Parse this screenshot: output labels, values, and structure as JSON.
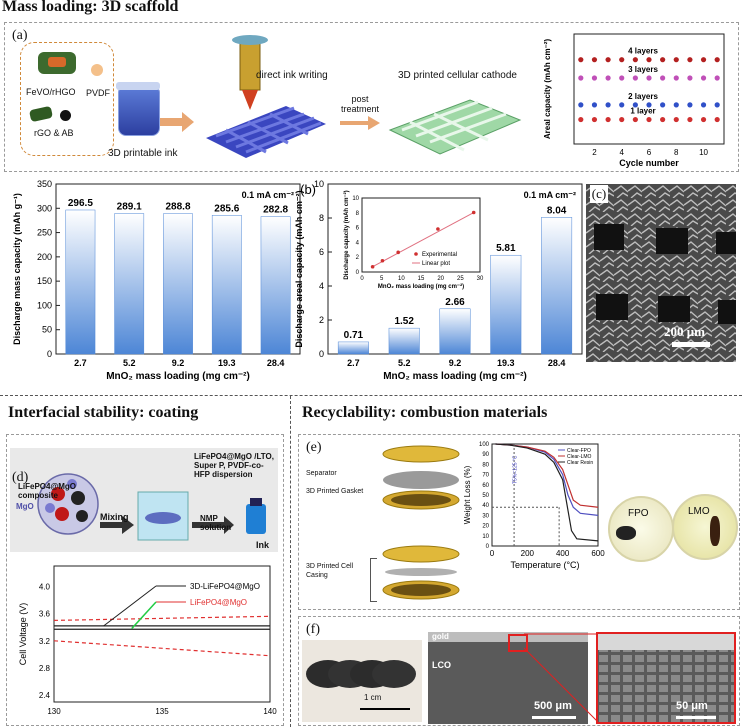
{
  "sections": {
    "mass": "Mass loading: 3D scaffold",
    "interfacial": "Interfacial stability: coating",
    "recycle": "Recyclability: combustion materials"
  },
  "panel_a": {
    "tag": "(a)",
    "ingredients": [
      "FeVO/rHGO",
      "PVDF",
      "rGO & AB"
    ],
    "ink_label": "3D printable ink",
    "step_label": "direct ink writing",
    "post_label": "post treatment",
    "cathode_label": "3D printed cellular cathode"
  },
  "panel_c": {
    "tag": "(c)",
    "scale": "200 μm"
  },
  "panel_d": {
    "tag": "(d)",
    "composite": "LiFePO4@MgO composite",
    "mgo": "MgO",
    "mixing": "Mixing",
    "dispersion": "LiFePO4@MgO /LTO, Super P, PVDF-co-HFP dispersion",
    "nmp": "NMP solution",
    "ink": "Ink"
  },
  "panel_e": {
    "tag": "(e)",
    "separator": "Separator",
    "gasket": "3D Printed Gasket",
    "casing": "3D Printed Cell Casing",
    "dish1": "FPO",
    "dish2": "LMO"
  },
  "panel_f": {
    "tag": "(f)",
    "scale1": "1 cm",
    "gold": "gold",
    "lco": "LCO",
    "scale2": "500 μm",
    "scale3": "50 μm"
  },
  "chart_data": [
    {
      "id": "areal-vs-cycle",
      "type": "scatter",
      "xlabel": "Cycle number",
      "ylabel": "Areal capacity (mAh cm⁻²)",
      "xticks": [
        "2",
        "4",
        "6",
        "8",
        "10"
      ],
      "xlim": [
        0.5,
        11.5
      ],
      "ylim": [
        0,
        9
      ],
      "x": [
        1,
        2,
        3,
        4,
        5,
        6,
        7,
        8,
        9,
        10,
        11
      ],
      "series": [
        {
          "name": "4 layers",
          "color": "#b32020",
          "value": 6.9
        },
        {
          "name": "3 layers",
          "color": "#c050b8",
          "value": 5.4
        },
        {
          "name": "2 layers",
          "color": "#3050c8",
          "value": 3.2
        },
        {
          "name": "1 layer",
          "color": "#d03030",
          "value": 2.0
        }
      ]
    },
    {
      "id": "mass-capacity",
      "type": "bar",
      "categories": [
        "2.7",
        "5.2",
        "9.2",
        "19.3",
        "28.4"
      ],
      "values": [
        296.5,
        289.1,
        288.8,
        285.6,
        282.8
      ],
      "value_labels": [
        "296.5",
        "289.1",
        "288.8",
        "285.6",
        "282.8"
      ],
      "ylim": [
        0,
        350
      ],
      "yticks": [
        "0",
        "50",
        "100",
        "150",
        "200",
        "250",
        "300",
        "350"
      ],
      "xlabel": "MnO₂ mass loading (mg cm⁻²)",
      "ylabel": "Discharge mass capacity (mAh g⁻¹)",
      "note": "0.1 mA cm⁻²"
    },
    {
      "id": "areal-capacity",
      "tag": "(b)",
      "type": "bar",
      "categories": [
        "2.7",
        "5.2",
        "9.2",
        "19.3",
        "28.4"
      ],
      "values": [
        0.71,
        1.52,
        2.66,
        5.81,
        8.04
      ],
      "value_labels": [
        "0.71",
        "1.52",
        "2.66",
        "5.81",
        "8.04"
      ],
      "ylim": [
        0,
        10
      ],
      "yticks": [
        "0",
        "2",
        "4",
        "6",
        "8",
        "10"
      ],
      "xlabel": "MnO₂ mass loading (mg cm⁻²)",
      "ylabel": "Discharge areal capacity (mAh cm⁻²)",
      "note": "0.1 mA cm⁻²",
      "inset": {
        "type": "line",
        "x": [
          2.7,
          5.2,
          9.2,
          19.3,
          28.4
        ],
        "y": [
          0.71,
          1.52,
          2.66,
          5.81,
          8.04
        ],
        "xlim": [
          0,
          30
        ],
        "ylim": [
          0,
          10
        ],
        "xticks": [
          "0",
          "5",
          "10",
          "15",
          "20",
          "25",
          "30"
        ],
        "yticks": [
          "0",
          "2",
          "4",
          "6",
          "8",
          "10"
        ],
        "xlabel": "MnO₂ mass loading (mg cm⁻²)",
        "ylabel": "Discharge capacity (mAh cm⁻²)",
        "legend": [
          "Experimental",
          "Linear plot"
        ]
      }
    },
    {
      "id": "tga",
      "type": "line",
      "xlabel": "Temperature (°C)",
      "ylabel": "Weight Loss (%)",
      "xlim": [
        0,
        600
      ],
      "ylim": [
        0,
        100
      ],
      "xticks": [
        "0",
        "200",
        "400",
        "600"
      ],
      "yticks": [
        "0",
        "10",
        "20",
        "30",
        "40",
        "50",
        "60",
        "70",
        "80",
        "90",
        "100"
      ],
      "annotation": "T5%=125 °C",
      "series": [
        {
          "name": "Clear-FPO",
          "color": "#5050c0",
          "x": [
            20,
            100,
            200,
            300,
            350,
            400,
            430,
            460,
            500,
            600
          ],
          "y": [
            100,
            99,
            97,
            92,
            85,
            70,
            50,
            38,
            32,
            30
          ]
        },
        {
          "name": "Clear-LMO",
          "color": "#c03030",
          "x": [
            20,
            100,
            200,
            300,
            350,
            400,
            430,
            460,
            500,
            600
          ],
          "y": [
            100,
            99,
            97,
            93,
            87,
            75,
            60,
            45,
            40,
            38
          ]
        },
        {
          "name": "Clear Resin",
          "color": "#202020",
          "x": [
            20,
            100,
            200,
            300,
            350,
            400,
            430,
            450,
            480,
            600
          ],
          "y": [
            100,
            99,
            96,
            90,
            82,
            65,
            35,
            15,
            7,
            5
          ]
        }
      ]
    },
    {
      "id": "voltage",
      "type": "line",
      "xlabel": "",
      "ylabel": "Cell Voltage (V)",
      "xlim": [
        130,
        140
      ],
      "ylim": [
        2.3,
        4.3
      ],
      "xticks": [
        "130",
        "135",
        "140"
      ],
      "yticks": [
        "2.4",
        "2.8",
        "3.2",
        "3.6",
        "4.0"
      ],
      "legend": [
        "3D-LiFePO4@MgO",
        "LiFePO4@MgO"
      ],
      "series": [
        {
          "name": "3D-LiFePO4@MgO",
          "color": "#202020",
          "x": [
            130,
            140
          ],
          "y": [
            3.42,
            3.42
          ]
        },
        {
          "name": "3D-LiFePO4@MgO-low",
          "color": "#202020",
          "x": [
            130,
            140
          ],
          "y": [
            3.37,
            3.37
          ]
        },
        {
          "name": "LiFePO4@MgO-up",
          "color": "#e03030",
          "x": [
            130,
            140
          ],
          "y": [
            3.5,
            3.56
          ]
        },
        {
          "name": "LiFePO4@MgO-down",
          "color": "#e03030",
          "x": [
            130,
            140
          ],
          "y": [
            3.2,
            2.98
          ]
        }
      ]
    }
  ]
}
